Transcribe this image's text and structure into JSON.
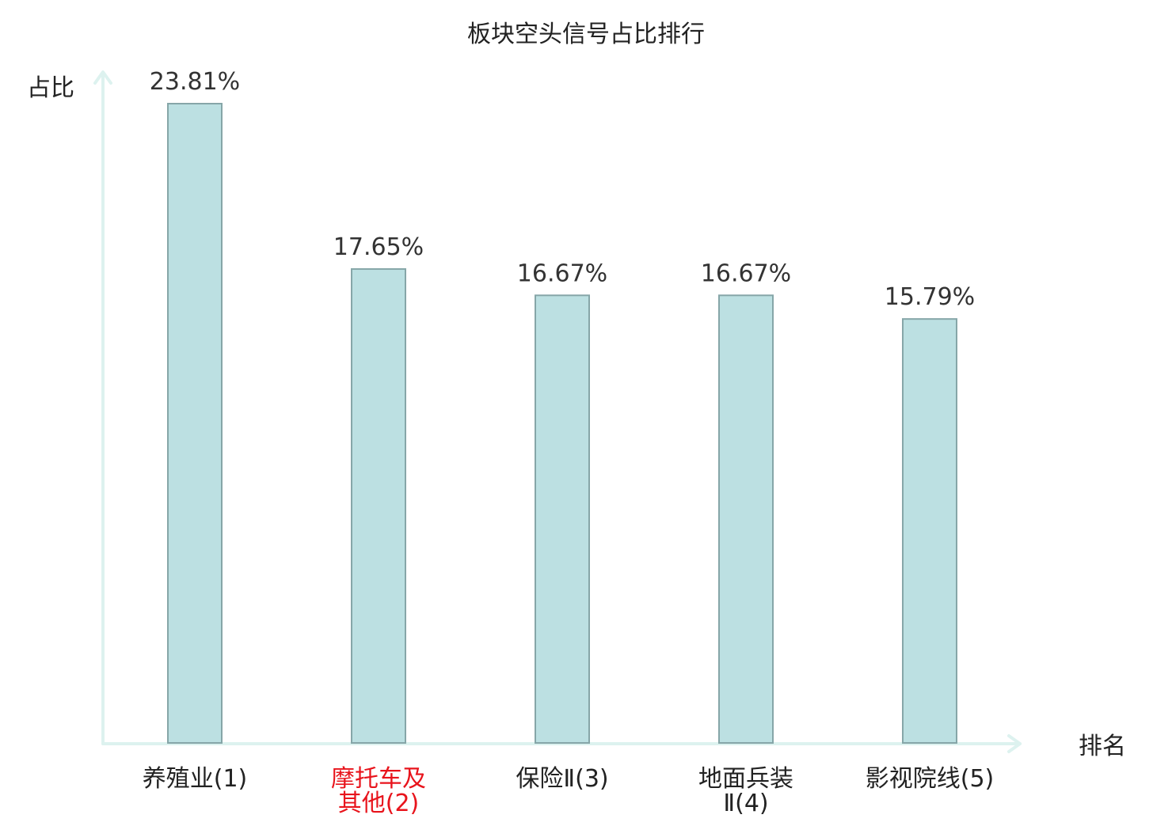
{
  "chart_data": {
    "type": "bar",
    "title": "板块空头信号占比排行",
    "xlabel": "排名",
    "ylabel": "占比",
    "categories": [
      [
        "养殖业(1)"
      ],
      [
        "摩托车及",
        "其他(2)"
      ],
      [
        "保险Ⅱ(3)"
      ],
      [
        "地面兵装",
        "Ⅱ(4)"
      ],
      [
        "影视院线(5)"
      ]
    ],
    "values": [
      23.81,
      17.65,
      16.67,
      16.67,
      15.79
    ],
    "value_labels": [
      "23.81%",
      "17.65%",
      "16.67%",
      "16.67%",
      "15.79%"
    ],
    "highlight_index": 1,
    "ylim": [
      0,
      23.81
    ],
    "grid": false,
    "colors": {
      "bar_fill": "#bce0e2",
      "bar_stroke": "#86a6a8",
      "axis": "#ddf2ef",
      "text": "#222222",
      "highlight_text": "#e8141c"
    }
  }
}
